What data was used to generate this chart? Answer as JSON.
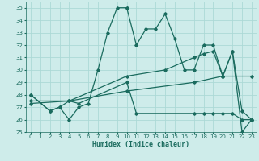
{
  "xlabel": "Humidex (Indice chaleur)",
  "xlim": [
    -0.5,
    23.5
  ],
  "ylim": [
    25,
    35.5
  ],
  "yticks": [
    25,
    26,
    27,
    28,
    29,
    30,
    31,
    32,
    33,
    34,
    35
  ],
  "xticks": [
    0,
    1,
    2,
    3,
    4,
    5,
    6,
    7,
    8,
    9,
    10,
    11,
    12,
    13,
    14,
    15,
    16,
    17,
    18,
    19,
    20,
    21,
    22,
    23
  ],
  "bg_color": "#ceecea",
  "line_color": "#1a6b5e",
  "grid_color": "#acd9d6",
  "lines": [
    {
      "x": [
        0,
        2,
        3,
        4,
        5,
        6,
        7,
        8,
        9,
        10
      ],
      "y": [
        28.0,
        26.7,
        27.0,
        26.0,
        27.0,
        27.3,
        30.0,
        33.0,
        35.0,
        35.0
      ]
    },
    {
      "x": [
        10,
        11,
        12,
        13,
        14,
        15,
        16,
        17,
        18,
        19,
        20,
        21,
        22,
        23
      ],
      "y": [
        35.0,
        32.0,
        33.3,
        33.3,
        34.5,
        32.5,
        30.0,
        30.0,
        32.0,
        32.0,
        29.5,
        31.5,
        26.7,
        26.0
      ]
    },
    {
      "x": [
        0,
        2,
        3,
        4,
        5,
        10,
        11,
        17,
        18,
        19,
        20,
        21,
        22,
        23
      ],
      "y": [
        28.0,
        26.7,
        27.0,
        27.5,
        27.3,
        29.0,
        26.5,
        26.5,
        26.5,
        26.5,
        26.5,
        26.5,
        26.0,
        26.0
      ]
    },
    {
      "x": [
        0,
        4,
        10,
        17,
        20,
        23
      ],
      "y": [
        27.3,
        27.5,
        28.3,
        29.0,
        29.5,
        29.5
      ]
    },
    {
      "x": [
        0,
        4,
        10,
        14,
        17,
        18,
        19,
        20,
        21,
        22,
        23
      ],
      "y": [
        27.5,
        27.5,
        29.5,
        30.0,
        31.0,
        31.3,
        31.5,
        29.5,
        31.5,
        25.0,
        26.0
      ]
    }
  ]
}
